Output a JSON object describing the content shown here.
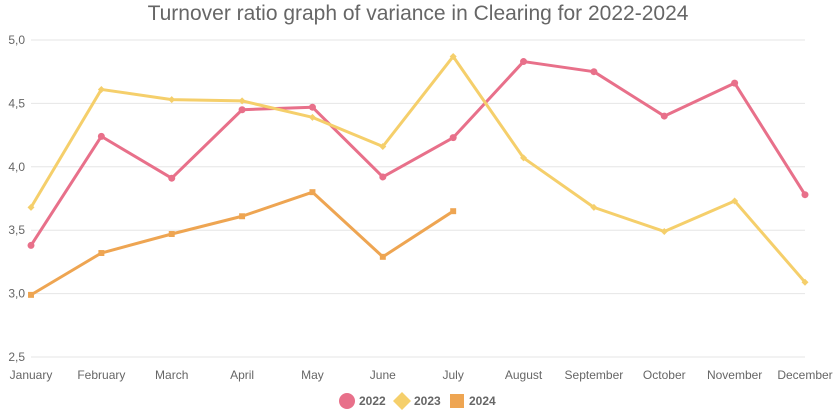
{
  "chart_data": {
    "type": "line",
    "title": "Turnover ratio graph of variance in Clearing for 2022-2024",
    "xlabel": "",
    "ylabel": "",
    "categories": [
      "January",
      "February",
      "March",
      "April",
      "May",
      "June",
      "July",
      "August",
      "September",
      "October",
      "November",
      "December"
    ],
    "y_ticks": [
      "2,5",
      "3,0",
      "3,5",
      "4,0",
      "4,5",
      "5,0"
    ],
    "ylim": [
      2.5,
      5.0
    ],
    "grid": true,
    "legend_position": "bottom",
    "series": [
      {
        "name": "2022",
        "color": "#e8708a",
        "marker": "circle",
        "values": [
          3.38,
          4.24,
          3.91,
          4.45,
          4.47,
          3.92,
          4.23,
          4.83,
          4.75,
          4.4,
          4.66,
          3.78
        ]
      },
      {
        "name": "2023",
        "color": "#f5cf6b",
        "marker": "diamond",
        "values": [
          3.68,
          4.61,
          4.53,
          4.52,
          4.39,
          4.16,
          4.87,
          4.07,
          3.68,
          3.49,
          3.73,
          3.09
        ]
      },
      {
        "name": "2024",
        "color": "#eea552",
        "marker": "square",
        "values": [
          2.99,
          3.32,
          3.47,
          3.61,
          3.8,
          3.29,
          3.65,
          null,
          null,
          null,
          null,
          null
        ]
      }
    ]
  }
}
